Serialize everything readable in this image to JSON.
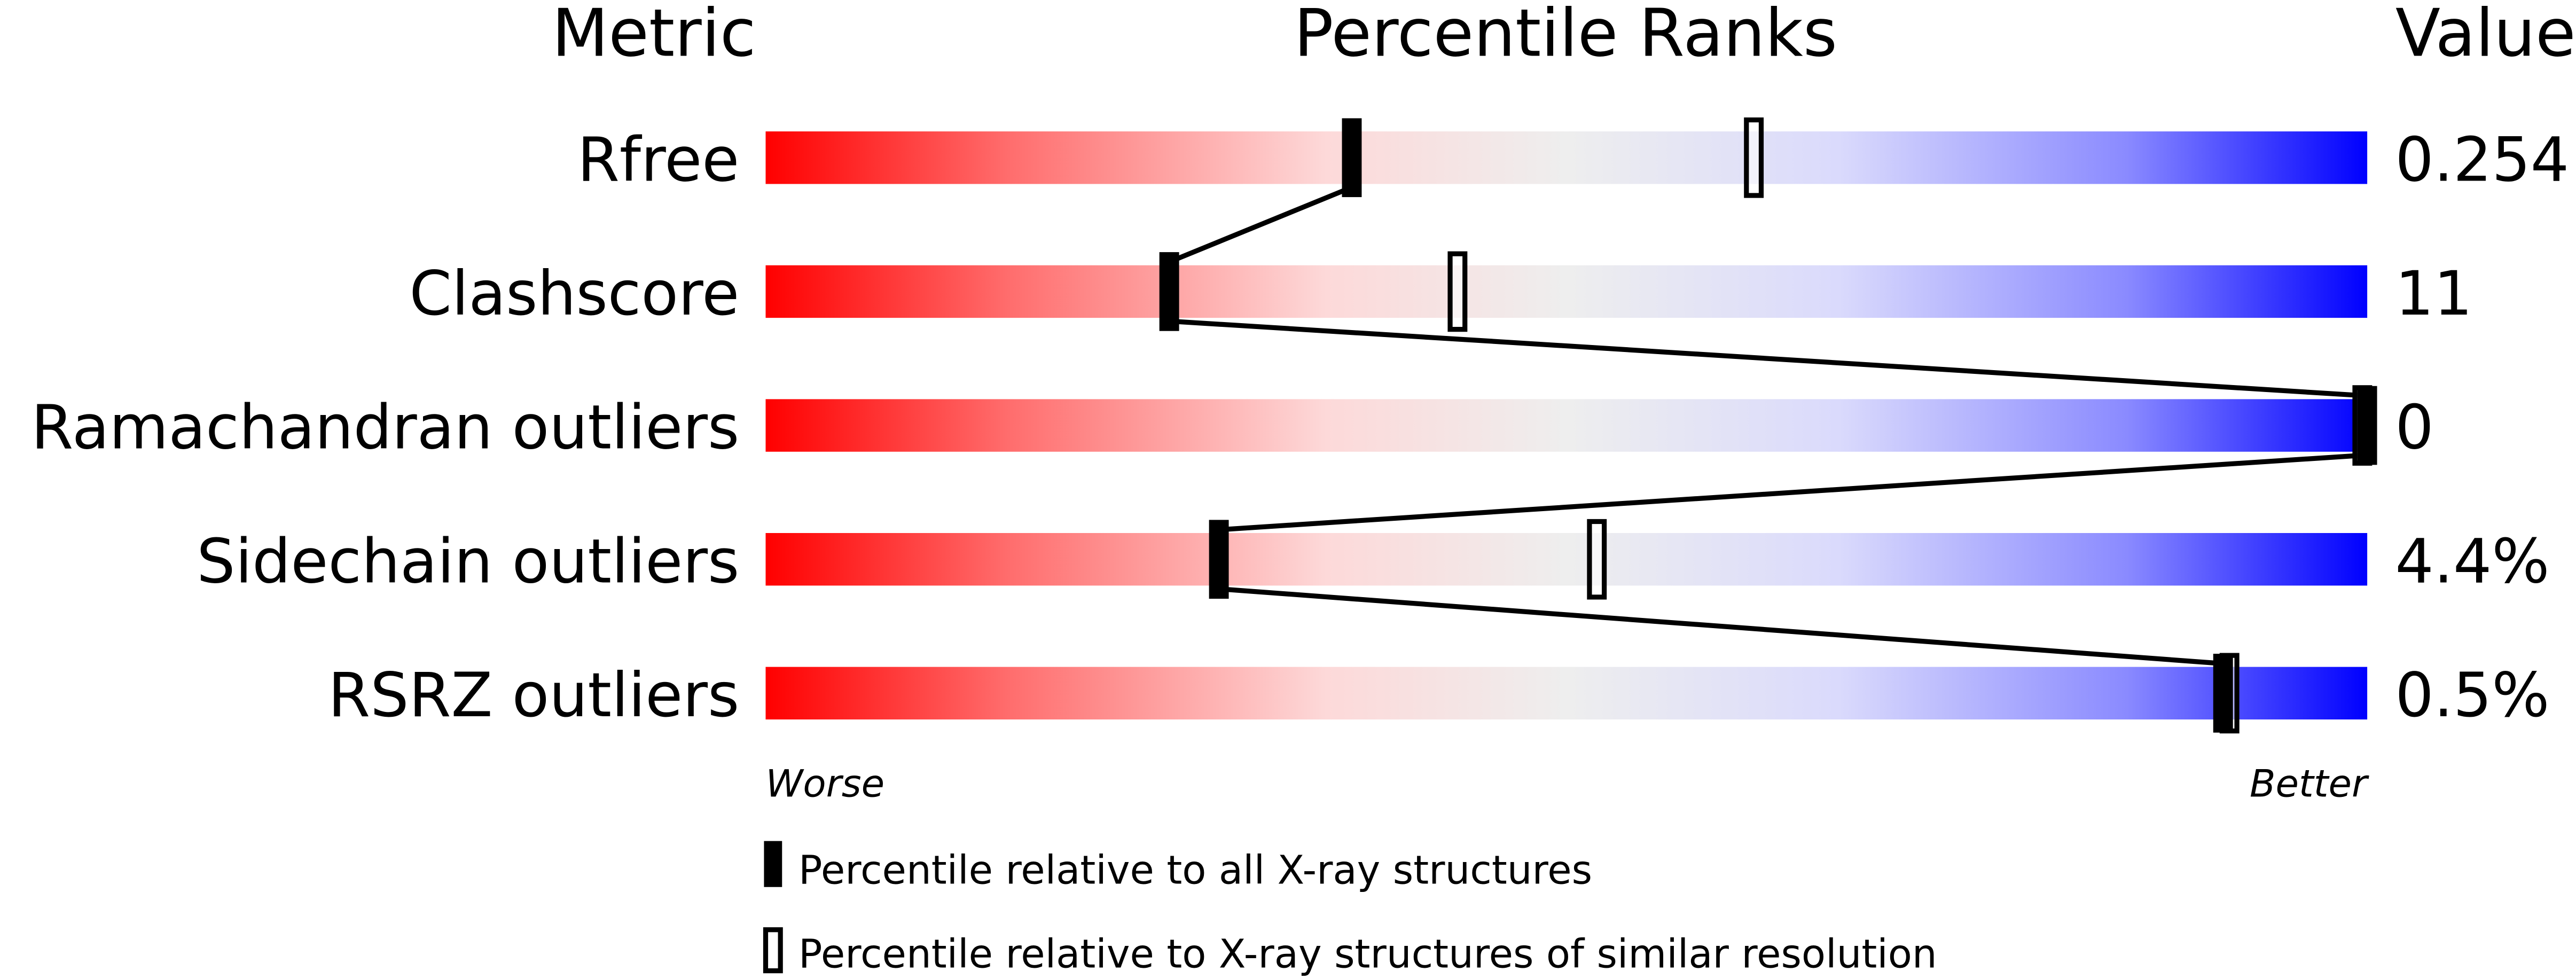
{
  "headers": {
    "metric": "Metric",
    "ranks": "Percentile Ranks",
    "value": "Value"
  },
  "chart_data": {
    "type": "percentile-slider",
    "xlim": [
      0,
      100
    ],
    "axis_left_label": "Worse",
    "axis_right_label": "Better",
    "gradient_colors": [
      "#ff0000",
      "#fdd9d9",
      "#eeeeee",
      "#dadafc",
      "#0000ff"
    ],
    "rows": [
      {
        "metric": "Rfree",
        "value": "0.254",
        "percentile_all": 36.6,
        "percentile_similar": 61.7
      },
      {
        "metric": "Clashscore",
        "value": "11",
        "percentile_all": 25.2,
        "percentile_similar": 43.2
      },
      {
        "metric": "Ramachandran outliers",
        "value": "0",
        "percentile_all": 100,
        "percentile_similar": 100
      },
      {
        "metric": "Sidechain outliers",
        "value": "4.4%",
        "percentile_all": 28.3,
        "percentile_similar": 51.9
      },
      {
        "metric": "RSRZ outliers",
        "value": "0.5%",
        "percentile_all": 91.0,
        "percentile_similar": 91.4
      }
    ],
    "legend": [
      {
        "marker": "filled",
        "label": "Percentile relative to all X-ray structures"
      },
      {
        "marker": "open",
        "label": "Percentile relative to X-ray structures of similar resolution"
      }
    ]
  }
}
